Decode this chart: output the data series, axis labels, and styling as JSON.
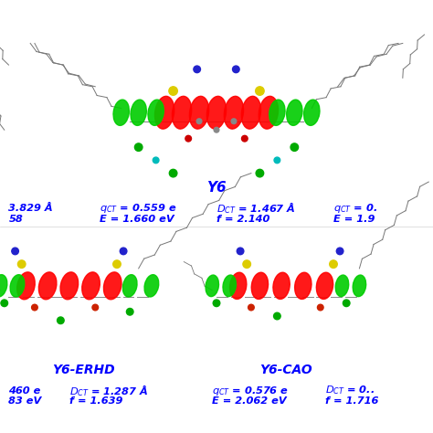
{
  "background_color": "#ffffff",
  "text_color_blue": "#0000FF",
  "figsize": [
    4.74,
    4.74
  ],
  "dpi": 100,
  "y6_label": "Y6",
  "y6erhd_label": "Y6-ERHD",
  "y6cao_label": "Y6-CAO",
  "y6_row1_col1": "3.829 Å",
  "y6_row2_col1": "58",
  "y6_row1_col2a": "q",
  "y6_row1_col2b": "CT",
  "y6_row1_col2c": " = 0.559 e",
  "y6_row2_col2": "E = 1.660 eV",
  "y6_row1_col3a": "D",
  "y6_row1_col3b": "CT",
  "y6_row1_col3c": " = 1.467 Å",
  "y6_row2_col3": "f = 2.140",
  "y6_row1_col4a": "q",
  "y6_row1_col4b": "CT",
  "y6_row1_col4c": " = 0.",
  "y6_row2_col4": "E = 1.9",
  "erhd_row1_col1": "460 e",
  "erhd_row2_col1": "83 eV",
  "erhd_row1_col2a": "D",
  "erhd_row1_col2b": "CT",
  "erhd_row1_col2c": " = 1.287 Å",
  "erhd_row2_col2": "f = 1.639",
  "cao_row1_col1a": "q",
  "cao_row1_col1b": "CT",
  "cao_row1_col1c": " = 0.576 e",
  "cao_row2_col1": "E = 2.062 eV",
  "cao_row1_col2a": "D",
  "cao_row1_col2b": "CT",
  "cao_row1_col2c": " = 0..",
  "cao_row2_col2": "f = 1.716"
}
